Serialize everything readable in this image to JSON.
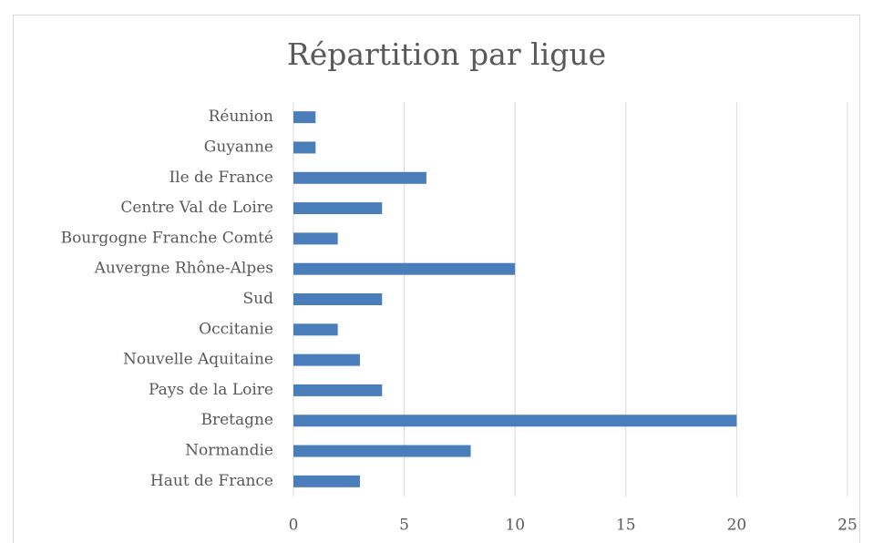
{
  "chart_data": {
    "type": "bar",
    "orientation": "horizontal",
    "title": "Répartition par ligue",
    "categories": [
      "Réunion",
      "Guyanne",
      "Ile de France",
      "Centre Val de Loire",
      "Bourgogne Franche Comté",
      "Auvergne Rhône-Alpes",
      "Sud",
      "Occitanie",
      "Nouvelle Aquitaine",
      "Pays de la Loire",
      "Bretagne",
      "Normandie",
      "Haut de France"
    ],
    "values": [
      1,
      1,
      6,
      4,
      2,
      10,
      4,
      2,
      3,
      4,
      20,
      8,
      3
    ],
    "color": "#4a7ebb",
    "xlim": [
      0,
      25
    ],
    "xticks": [
      0,
      5,
      10,
      15,
      20,
      25
    ],
    "grid": true
  }
}
